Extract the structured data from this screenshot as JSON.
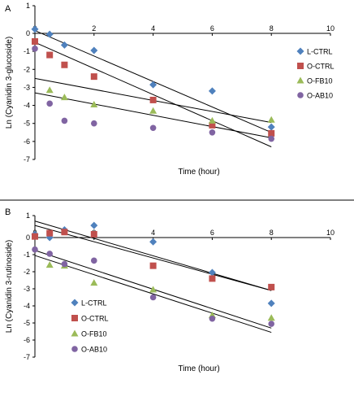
{
  "chart_data": [
    {
      "type": "scatter",
      "panel_label": "A",
      "title": "",
      "xlabel": "Time (hour)",
      "ylabel": "Ln (Cyanidin 3-glucoside)",
      "xlim": [
        0,
        10
      ],
      "ylim": [
        -7,
        1
      ],
      "x_ticks": [
        0,
        2,
        4,
        6,
        8,
        10
      ],
      "y_ticks": [
        1,
        0,
        -1,
        -2,
        -3,
        -4,
        -5,
        -6,
        -7
      ],
      "grid": false,
      "legend_position": "right",
      "series": [
        {
          "name": "L-CTRL",
          "marker": "diamond",
          "color": "#4F81BD",
          "x": [
            0,
            0.5,
            1,
            2,
            4,
            6,
            8
          ],
          "y": [
            0.15,
            -0.05,
            -0.65,
            -0.95,
            -2.85,
            -3.2,
            -5.2
          ],
          "fit": {
            "x": [
              0,
              8
            ],
            "y": [
              0.1,
              -5.5
            ]
          }
        },
        {
          "name": "O-CTRL",
          "marker": "square",
          "color": "#C0504D",
          "x": [
            0,
            0.5,
            1,
            2,
            4,
            6,
            8
          ],
          "y": [
            -0.45,
            -1.2,
            -1.75,
            -2.4,
            -3.7,
            -5.1,
            -5.55
          ],
          "fit": {
            "x": [
              0,
              8
            ],
            "y": [
              -0.5,
              -6.3
            ]
          }
        },
        {
          "name": "O-FB10",
          "marker": "triangle",
          "color": "#9BBB59",
          "x": [
            0.5,
            1,
            2,
            4,
            6,
            8
          ],
          "y": [
            -3.15,
            -3.55,
            -3.95,
            -4.3,
            -4.85,
            -4.8
          ],
          "fit": {
            "x": [
              0,
              8
            ],
            "y": [
              -2.5,
              -4.95
            ]
          }
        },
        {
          "name": "O-AB10",
          "marker": "circle",
          "color": "#8064A2",
          "x": [
            0,
            0.5,
            1,
            2,
            4,
            6,
            8
          ],
          "y": [
            -0.85,
            -3.9,
            -4.85,
            -5.0,
            -5.25,
            -5.5,
            -5.85
          ],
          "fit": {
            "x": [
              0,
              8
            ],
            "y": [
              -3.3,
              -5.8
            ]
          }
        }
      ]
    },
    {
      "type": "scatter",
      "panel_label": "B",
      "title": "",
      "xlabel": "Time (hour)",
      "ylabel": "Ln (Cyanidin 3-rutinoside)",
      "xlim": [
        0,
        10
      ],
      "ylim": [
        -7,
        1
      ],
      "x_ticks": [
        0,
        2,
        4,
        6,
        8,
        10
      ],
      "y_ticks": [
        1,
        0,
        -1,
        -2,
        -3,
        -4,
        -5,
        -6,
        -7
      ],
      "grid": false,
      "legend_position": "bottom-left",
      "series": [
        {
          "name": "L-CTRL",
          "marker": "diamond",
          "color": "#4F81BD",
          "x": [
            0,
            0.5,
            1,
            2,
            4,
            6,
            8
          ],
          "y": [
            0.15,
            0.0,
            0.35,
            0.55,
            -0.25,
            -2.05,
            -3.85
          ],
          "fit": {
            "x": [
              0,
              8
            ],
            "y": [
              0.75,
              -3.1
            ]
          }
        },
        {
          "name": "O-CTRL",
          "marker": "square",
          "color": "#C0504D",
          "x": [
            0,
            0.5,
            1,
            2,
            4,
            6,
            8
          ],
          "y": [
            0.05,
            0.2,
            0.25,
            0.15,
            -1.65,
            -2.4,
            -2.9
          ],
          "fit": {
            "x": [
              0,
              8
            ],
            "y": [
              0.55,
              -3.1
            ]
          }
        },
        {
          "name": "O-FB10",
          "marker": "triangle",
          "color": "#9BBB59",
          "x": [
            0.5,
            1,
            2,
            4,
            6,
            8
          ],
          "y": [
            -1.6,
            -1.65,
            -2.65,
            -3.05,
            -4.55,
            -4.7
          ],
          "fit": {
            "x": [
              0,
              8
            ],
            "y": [
              -0.75,
              -5.3
            ]
          }
        },
        {
          "name": "O-AB10",
          "marker": "circle",
          "color": "#8064A2",
          "x": [
            0,
            0.5,
            1,
            2,
            4,
            6,
            8
          ],
          "y": [
            -0.7,
            -0.95,
            -1.55,
            -1.35,
            -3.5,
            -4.75,
            -5.05
          ],
          "fit": {
            "x": [
              0,
              8
            ],
            "y": [
              -1.05,
              -5.55
            ]
          }
        }
      ]
    }
  ]
}
